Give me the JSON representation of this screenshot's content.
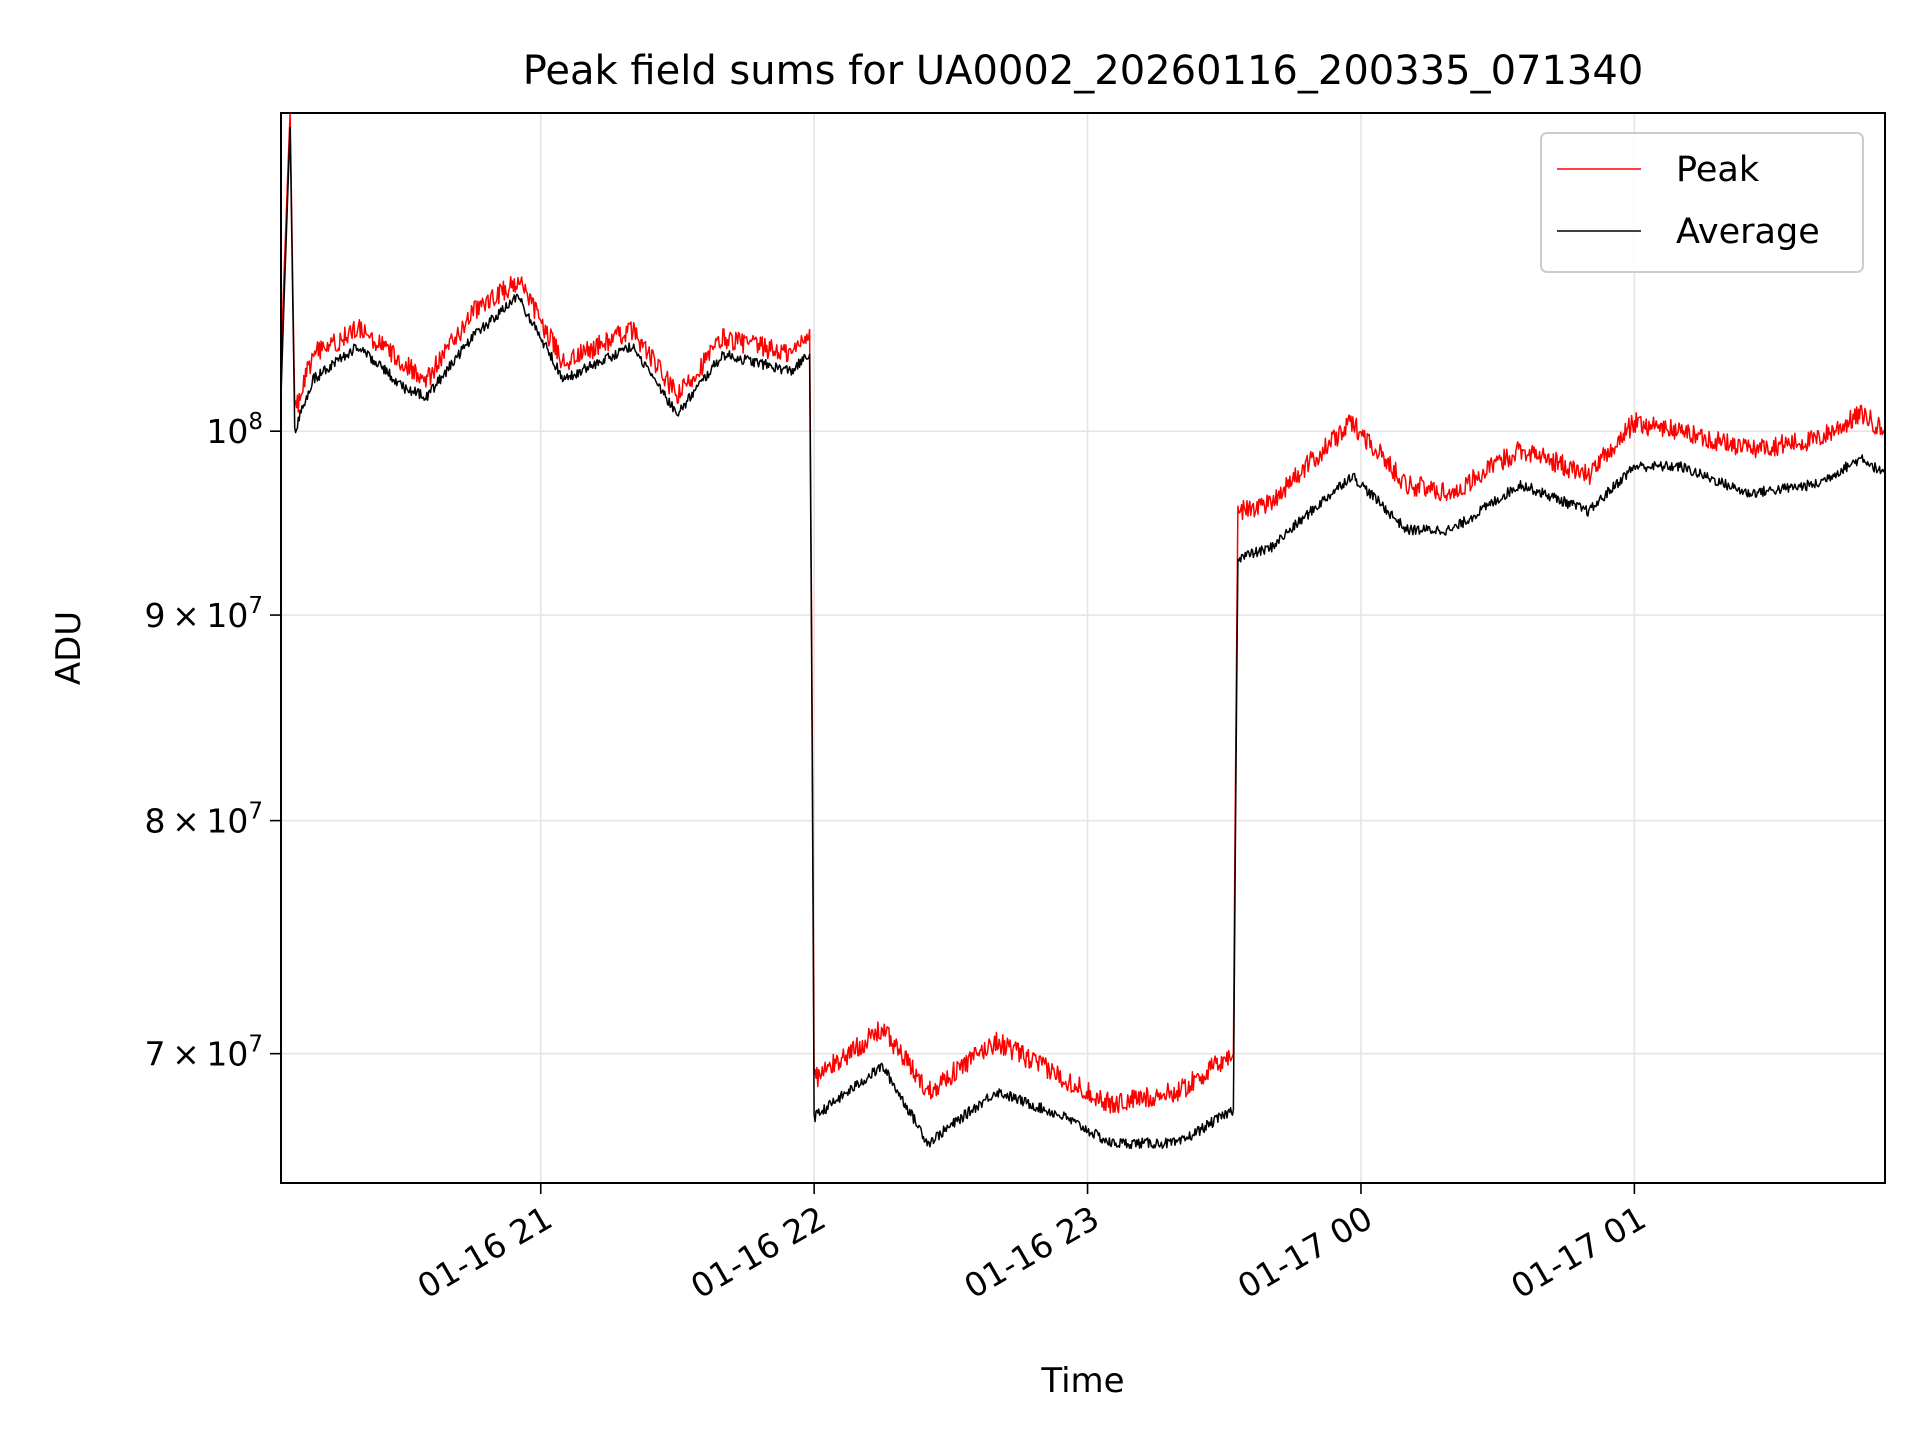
{
  "chart_data": {
    "type": "line",
    "title": "Peak field sums for UA0002_20260116_200335_071340",
    "xlabel": "Time",
    "ylabel": "ADU",
    "yscale": "log",
    "ylim": [
      65000000,
      120000000
    ],
    "xlim": [
      "01-16 20:03",
      "01-17 01:55"
    ],
    "x_ticks": [
      "01-16 21",
      "01-16 22",
      "01-16 23",
      "01-17 00",
      "01-17 01"
    ],
    "y_ticks": [
      {
        "value": 100000000,
        "mant": "",
        "base": "10",
        "exp": "8"
      },
      {
        "value": 90000000,
        "mant": "9 × 10",
        "base": "",
        "exp": "7"
      },
      {
        "value": 80000000,
        "mant": "8 × 10",
        "base": "",
        "exp": "7"
      },
      {
        "value": 70000000,
        "mant": "7 × 10",
        "base": "",
        "exp": "7"
      }
    ],
    "grid": true,
    "legend": "top-right",
    "series": [
      {
        "name": "Peak",
        "color": "#ff0000",
        "x": [
          "01-16 20:03",
          "01-16 20:05",
          "01-16 20:06",
          "01-16 20:10",
          "01-16 20:20",
          "01-16 20:30",
          "01-16 20:35",
          "01-16 20:45",
          "01-16 20:55",
          "01-16 21:05",
          "01-16 21:20",
          "01-16 21:30",
          "01-16 21:40",
          "01-16 21:55",
          "01-16 21:59",
          "01-16 22:00",
          "01-16 22:15",
          "01-16 22:25",
          "01-16 22:40",
          "01-16 22:55",
          "01-16 23:05",
          "01-16 23:20",
          "01-16 23:32",
          "01-16 23:33",
          "01-16 23:40",
          "01-16 23:58",
          "01-17 00:10",
          "01-17 00:20",
          "01-17 00:35",
          "01-17 00:50",
          "01-17 01:00",
          "01-17 01:10",
          "01-17 01:25",
          "01-17 01:40",
          "01-17 01:50",
          "01-17 01:55"
        ],
        "values": [
          104000000,
          120000000,
          101000000,
          104500000,
          106000000,
          104000000,
          103000000,
          107000000,
          109000000,
          104000000,
          106000000,
          102000000,
          105500000,
          104500000,
          106000000,
          69000000,
          71000000,
          68500000,
          70500000,
          69000000,
          68000000,
          68500000,
          70000000,
          95500000,
          96000000,
          100500000,
          97000000,
          96500000,
          99000000,
          97500000,
          100500000,
          100000000,
          99000000,
          99500000,
          101000000,
          100000000
        ]
      },
      {
        "name": "Average",
        "color": "#000000",
        "x": [
          "01-16 20:03",
          "01-16 20:05",
          "01-16 20:06",
          "01-16 20:10",
          "01-16 20:20",
          "01-16 20:30",
          "01-16 20:35",
          "01-16 20:45",
          "01-16 20:55",
          "01-16 21:05",
          "01-16 21:20",
          "01-16 21:30",
          "01-16 21:40",
          "01-16 21:55",
          "01-16 21:59",
          "01-16 22:00",
          "01-16 22:15",
          "01-16 22:25",
          "01-16 22:40",
          "01-16 22:55",
          "01-16 23:05",
          "01-16 23:20",
          "01-16 23:32",
          "01-16 23:33",
          "01-16 23:40",
          "01-16 23:58",
          "01-17 00:10",
          "01-17 00:20",
          "01-17 00:35",
          "01-17 00:50",
          "01-17 01:00",
          "01-17 01:10",
          "01-17 01:25",
          "01-17 01:40",
          "01-17 01:50",
          "01-17 01:55"
        ],
        "values": [
          102000000,
          119000000,
          100000000,
          103000000,
          105000000,
          102500000,
          102000000,
          105500000,
          108000000,
          103000000,
          105000000,
          101000000,
          104500000,
          103500000,
          104500000,
          67500000,
          69500000,
          66500000,
          68500000,
          67500000,
          66500000,
          66500000,
          67800000,
          93000000,
          93500000,
          97500000,
          94500000,
          94500000,
          97000000,
          95500000,
          98000000,
          98000000,
          96500000,
          97000000,
          98500000,
          97500000
        ]
      }
    ]
  }
}
